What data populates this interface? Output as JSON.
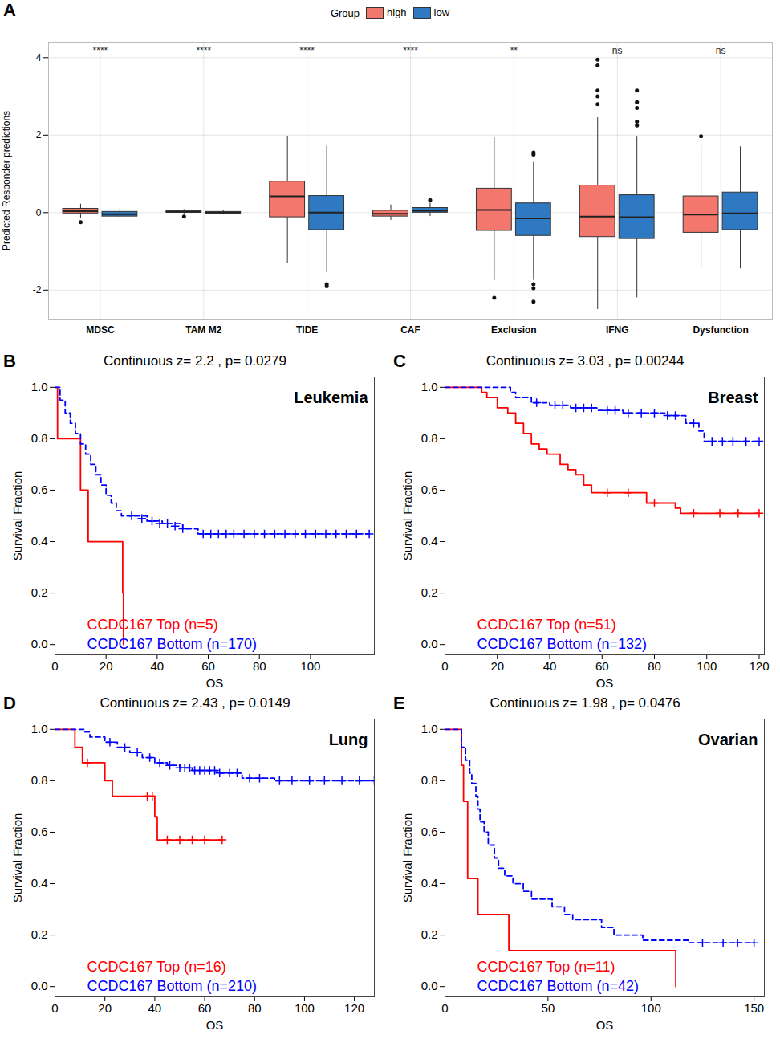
{
  "chart_data": [
    {
      "type": "box",
      "panel": "A",
      "ylabel": "Predicted Responder predictions",
      "legend_title": "Group",
      "legend": "top",
      "categories": [
        "MDSC",
        "TAM M2",
        "TIDE",
        "CAF",
        "Exclusion",
        "IFNG",
        "Dysfunction"
      ],
      "annotations": [
        "****",
        "****",
        "****",
        "****",
        "**",
        "ns",
        "ns"
      ],
      "ylim": [
        -2.75,
        4.4
      ],
      "yticks": [
        -2,
        0,
        2,
        4
      ],
      "grid": true,
      "series": [
        {
          "name": "high",
          "color": "#f4776e",
          "min": [
            -0.15,
            -0.03,
            -1.3,
            -0.2,
            -1.75,
            -2.5,
            -1.4
          ],
          "q1": [
            -0.02,
            0.0,
            -0.12,
            -0.1,
            -0.47,
            -0.63,
            -0.52
          ],
          "median": [
            0.04,
            0.02,
            0.42,
            -0.03,
            0.07,
            -0.1,
            -0.05
          ],
          "q3": [
            0.1,
            0.04,
            0.8,
            0.05,
            0.62,
            0.7,
            0.42
          ],
          "max": [
            0.22,
            0.08,
            1.97,
            0.2,
            1.93,
            2.45,
            1.75
          ],
          "outliers": [
            [
              -0.25
            ],
            [
              -0.1
            ],
            [],
            [],
            [
              -2.2
            ],
            [
              2.8,
              3.0,
              3.15,
              3.8,
              3.95
            ],
            [
              1.97
            ]
          ]
        },
        {
          "name": "low",
          "color": "#2f78c2",
          "min": [
            -0.15,
            -0.05,
            -1.55,
            -0.1,
            -1.75,
            -2.2,
            -1.45
          ],
          "q1": [
            -0.1,
            -0.02,
            -0.45,
            0.0,
            -0.6,
            -0.68,
            -0.45
          ],
          "median": [
            -0.04,
            0.0,
            0.0,
            0.05,
            -0.15,
            -0.12,
            -0.02
          ],
          "q3": [
            0.02,
            0.02,
            0.43,
            0.12,
            0.24,
            0.45,
            0.52
          ],
          "max": [
            0.12,
            0.05,
            1.72,
            0.25,
            1.3,
            1.95,
            1.7
          ],
          "outliers": [
            [],
            [],
            [
              -1.85,
              -1.9
            ],
            [
              0.32
            ],
            [
              1.5,
              1.55,
              -1.85,
              -1.95,
              -2.3
            ],
            [
              2.25,
              2.35,
              2.7,
              2.85,
              3.15
            ],
            []
          ]
        }
      ]
    },
    {
      "type": "survival",
      "panel": "B",
      "title": "Continuous z= 2.2 , p= 0.0279",
      "annotation": "Leukemia",
      "xlabel": "OS",
      "ylabel": "Survival Fraction",
      "marker": "plus",
      "xlim": [
        0,
        125
      ],
      "xticks": [
        0,
        20,
        40,
        60,
        80,
        100
      ],
      "ylim": [
        -0.04,
        1.04
      ],
      "yticks": [
        {
          "value": 0,
          "label": "0.0"
        },
        {
          "value": 0.2,
          "label": "0.2"
        },
        {
          "value": 0.4,
          "label": "0.4"
        },
        {
          "value": 0.6,
          "label": "0.6"
        },
        {
          "value": 0.8,
          "label": "0.8"
        },
        {
          "value": 1,
          "label": "1.0"
        }
      ],
      "series": [
        {
          "name": "CCDC167 Top (n=5)",
          "color": "#ff0000",
          "line_style": "solid",
          "x": [
            0,
            1,
            10,
            13,
            26.5,
            26.8
          ],
          "values": [
            1,
            0.8,
            0.6,
            0.4,
            0.2,
            0
          ],
          "censored_x": [],
          "censored_values": []
        },
        {
          "name": "CCDC167 Bottom (n=170)",
          "color": "#0000ff",
          "line_style": "dashed",
          "x": [
            0,
            2,
            4,
            6,
            8,
            10,
            12,
            14,
            16,
            18,
            20,
            22,
            24,
            26,
            30,
            36,
            42,
            50,
            56,
            123
          ],
          "values": [
            1,
            0.95,
            0.9,
            0.86,
            0.82,
            0.78,
            0.74,
            0.7,
            0.66,
            0.62,
            0.58,
            0.55,
            0.52,
            0.5,
            0.5,
            0.48,
            0.47,
            0.45,
            0.43,
            0.43
          ],
          "censored_x": [
            30,
            34,
            38,
            41,
            44,
            47,
            50,
            58,
            61,
            64,
            67,
            70,
            74,
            78,
            82,
            86,
            90,
            94,
            98,
            102,
            106,
            110,
            114,
            118,
            123
          ],
          "censored_values": [
            0.5,
            0.49,
            0.48,
            0.47,
            0.47,
            0.46,
            0.45,
            0.43,
            0.43,
            0.43,
            0.43,
            0.43,
            0.43,
            0.43,
            0.43,
            0.43,
            0.43,
            0.43,
            0.43,
            0.43,
            0.43,
            0.43,
            0.43,
            0.43,
            0.43
          ]
        }
      ]
    },
    {
      "type": "survival",
      "panel": "C",
      "title": "Continuous z= 3.03 , p= 0.00244",
      "annotation": "Breast",
      "xlabel": "OS",
      "ylabel": "Survival Fraction",
      "marker": "plus",
      "xlim": [
        0,
        122
      ],
      "xticks": [
        0,
        20,
        40,
        60,
        80,
        100,
        120
      ],
      "ylim": [
        -0.04,
        1.04
      ],
      "yticks": [
        {
          "value": 0,
          "label": "0.0"
        },
        {
          "value": 0.2,
          "label": "0.2"
        },
        {
          "value": 0.4,
          "label": "0.4"
        },
        {
          "value": 0.6,
          "label": "0.6"
        },
        {
          "value": 0.8,
          "label": "0.8"
        },
        {
          "value": 1,
          "label": "1.0"
        }
      ],
      "series": [
        {
          "name": "CCDC167 Top (n=51)",
          "color": "#ff0000",
          "line_style": "solid",
          "x": [
            0,
            14,
            16,
            20,
            24,
            27,
            30,
            33,
            36,
            39,
            44,
            47,
            50,
            53,
            56,
            59,
            77,
            88,
            90,
            120
          ],
          "values": [
            1,
            0.98,
            0.96,
            0.92,
            0.9,
            0.86,
            0.82,
            0.78,
            0.76,
            0.74,
            0.7,
            0.68,
            0.66,
            0.62,
            0.59,
            0.59,
            0.55,
            0.53,
            0.51,
            0.51
          ],
          "censored_x": [
            62,
            70,
            80,
            95,
            105,
            112,
            120
          ],
          "censored_values": [
            0.59,
            0.59,
            0.55,
            0.51,
            0.51,
            0.51,
            0.51
          ]
        },
        {
          "name": "CCDC167 Bottom (n=132)",
          "color": "#0000ff",
          "line_style": "dashed",
          "x": [
            0,
            25,
            27,
            33,
            40,
            48,
            58,
            68,
            85,
            92,
            97,
            99,
            120
          ],
          "values": [
            1,
            0.98,
            0.96,
            0.94,
            0.93,
            0.92,
            0.91,
            0.9,
            0.89,
            0.86,
            0.83,
            0.79,
            0.79
          ],
          "censored_x": [
            35,
            42,
            45,
            50,
            53,
            56,
            62,
            65,
            70,
            75,
            80,
            85,
            88,
            95,
            102,
            106,
            110,
            115,
            120
          ],
          "censored_values": [
            0.94,
            0.93,
            0.93,
            0.92,
            0.92,
            0.92,
            0.91,
            0.91,
            0.9,
            0.9,
            0.9,
            0.89,
            0.89,
            0.86,
            0.79,
            0.79,
            0.79,
            0.79,
            0.79
          ]
        }
      ]
    },
    {
      "type": "survival",
      "panel": "D",
      "title": "Continuous z= 2.43 , p= 0.0149",
      "annotation": "Lung",
      "xlabel": "OS",
      "ylabel": "Survival Fraction",
      "marker": "plus",
      "xlim": [
        0,
        128
      ],
      "xticks": [
        0,
        20,
        40,
        60,
        80,
        100,
        120
      ],
      "ylim": [
        -0.04,
        1.04
      ],
      "yticks": [
        {
          "value": 0,
          "label": "0.0"
        },
        {
          "value": 0.2,
          "label": "0.2"
        },
        {
          "value": 0.4,
          "label": "0.4"
        },
        {
          "value": 0.6,
          "label": "0.6"
        },
        {
          "value": 0.8,
          "label": "0.8"
        },
        {
          "value": 1,
          "label": "1.0"
        }
      ],
      "series": [
        {
          "name": "CCDC167 Top (n=16)",
          "color": "#ff0000",
          "line_style": "solid",
          "x": [
            0,
            8,
            11,
            20,
            23,
            40,
            41,
            67
          ],
          "values": [
            1,
            0.93,
            0.87,
            0.8,
            0.74,
            0.66,
            0.57,
            0.57
          ],
          "censored_x": [
            13,
            37,
            39,
            45,
            50,
            55,
            60,
            67
          ],
          "censored_values": [
            0.87,
            0.74,
            0.74,
            0.57,
            0.57,
            0.57,
            0.57,
            0.57
          ]
        },
        {
          "name": "CCDC167 Bottom (n=210)",
          "color": "#0000ff",
          "line_style": "dashed",
          "x": [
            0,
            12,
            14,
            20,
            25,
            30,
            35,
            40,
            45,
            50,
            55,
            65,
            75,
            88,
            128
          ],
          "values": [
            1,
            0.99,
            0.97,
            0.95,
            0.93,
            0.91,
            0.89,
            0.87,
            0.86,
            0.85,
            0.84,
            0.83,
            0.81,
            0.8,
            0.8
          ],
          "censored_x": [
            22,
            28,
            33,
            38,
            42,
            46,
            50,
            52,
            54,
            56,
            58,
            60,
            62,
            64,
            66,
            70,
            73,
            78,
            82,
            90,
            95,
            102,
            108,
            115,
            122,
            128
          ],
          "censored_values": [
            0.95,
            0.93,
            0.91,
            0.89,
            0.87,
            0.86,
            0.85,
            0.85,
            0.85,
            0.84,
            0.84,
            0.84,
            0.84,
            0.84,
            0.83,
            0.83,
            0.83,
            0.81,
            0.81,
            0.8,
            0.8,
            0.8,
            0.8,
            0.8,
            0.8,
            0.8
          ]
        }
      ]
    },
    {
      "type": "survival",
      "panel": "E",
      "title": "Continuous z= 1.98 , p= 0.0476",
      "annotation": "Ovarian",
      "xlabel": "OS",
      "ylabel": "Survival Fraction",
      "marker": "plus",
      "xlim": [
        0,
        155
      ],
      "xticks": [
        0,
        50,
        100,
        150
      ],
      "ylim": [
        -0.04,
        1.04
      ],
      "yticks": [
        {
          "value": 0,
          "label": "0.0"
        },
        {
          "value": 0.2,
          "label": "0.2"
        },
        {
          "value": 0.4,
          "label": "0.4"
        },
        {
          "value": 0.6,
          "label": "0.6"
        },
        {
          "value": 0.8,
          "label": "0.8"
        },
        {
          "value": 1,
          "label": "1.0"
        }
      ],
      "series": [
        {
          "name": "CCDC167 Top (n=11)",
          "color": "#ff0000",
          "line_style": "solid",
          "x": [
            0,
            8,
            9,
            11,
            16,
            31,
            112
          ],
          "values": [
            1,
            0.86,
            0.72,
            0.42,
            0.28,
            0.14,
            0
          ],
          "censored_x": [],
          "censored_values": []
        },
        {
          "name": "CCDC167 Bottom (n=42)",
          "color": "#0000ff",
          "line_style": "dashed",
          "x": [
            0,
            8,
            10,
            12,
            13,
            15,
            16,
            17,
            19,
            21,
            24,
            26,
            29,
            33,
            38,
            42,
            52,
            58,
            62,
            76,
            82,
            96,
            118,
            150
          ],
          "values": [
            1,
            0.93,
            0.88,
            0.83,
            0.79,
            0.74,
            0.69,
            0.64,
            0.6,
            0.55,
            0.5,
            0.46,
            0.43,
            0.4,
            0.37,
            0.34,
            0.31,
            0.28,
            0.26,
            0.23,
            0.2,
            0.18,
            0.17,
            0.17
          ],
          "censored_x": [
            125,
            135,
            142,
            150
          ],
          "censored_values": [
            0.17,
            0.17,
            0.17,
            0.17
          ]
        }
      ]
    }
  ]
}
